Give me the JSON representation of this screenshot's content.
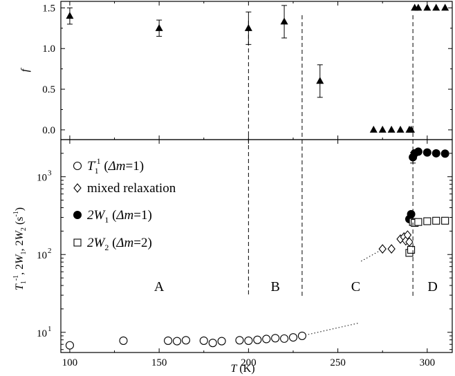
{
  "chart_data": [
    {
      "panel": "top",
      "type": "scatter",
      "ylabel": "f",
      "xlabel": "",
      "xlim": [
        95,
        314
      ],
      "ylim": [
        -0.12,
        1.58
      ],
      "yticks": [
        "0.0",
        "0.5",
        "1.0",
        "1.5"
      ],
      "ytick_values": [
        0,
        0.5,
        1.0,
        1.5
      ],
      "series": [
        {
          "marker": "filled-triangle",
          "points": [
            {
              "x": 100,
              "y": 1.4,
              "err": 0.1
            },
            {
              "x": 150,
              "y": 1.25,
              "err": 0.1
            },
            {
              "x": 200,
              "y": 1.25,
              "err": 0.2
            },
            {
              "x": 220,
              "y": 1.33,
              "err": 0.2
            },
            {
              "x": 240,
              "y": 0.6,
              "err": 0.2
            },
            {
              "x": 270,
              "y": 0.0
            },
            {
              "x": 275,
              "y": 0.0
            },
            {
              "x": 280,
              "y": 0.0
            },
            {
              "x": 285,
              "y": 0.0
            },
            {
              "x": 290,
              "y": 0.0
            },
            {
              "x": 291,
              "y": 0.0
            },
            {
              "x": 293,
              "y": 1.5
            },
            {
              "x": 295,
              "y": 1.5
            },
            {
              "x": 300,
              "y": 1.5
            },
            {
              "x": 305,
              "y": 1.5
            },
            {
              "x": 310,
              "y": 1.5
            }
          ]
        }
      ]
    },
    {
      "panel": "bottom",
      "type": "scatter",
      "scale": "log",
      "xlabel": "T (K)",
      "ylabel": "T1^-1, 2W1, 2W2 (s^-1)",
      "xlim": [
        95,
        314
      ],
      "ylim": [
        5.5,
        3000
      ],
      "xticks": [
        "100",
        "150",
        "200",
        "250",
        "300"
      ],
      "xtick_values": [
        100,
        150,
        200,
        250,
        300
      ],
      "yticks": [
        "10",
        "10",
        "10"
      ],
      "ytick_exponents": [
        "1",
        "2",
        "3"
      ],
      "ytick_values": [
        10,
        100,
        1000
      ],
      "regions": [
        "A",
        "B",
        "C",
        "D"
      ],
      "legend": [
        {
          "marker": "open-circle",
          "prefix": "T",
          "sub": "1",
          "sup": "-1",
          "suffix": " (",
          "italic": "Δm",
          "tail": "=1)"
        },
        {
          "marker": "open-diamond",
          "text": "mixed relaxation"
        },
        {
          "marker": "filled-circle",
          "prefix": "2W",
          "sub": "1",
          "suffix": " (",
          "italic": "Δm",
          "tail": "=1)"
        },
        {
          "marker": "open-square",
          "prefix": "2W",
          "sub": "2",
          "suffix": " (",
          "italic": "Δm",
          "tail": "=2)"
        }
      ],
      "series": [
        {
          "marker": "open-circle",
          "points": [
            [
              100,
              6.8
            ],
            [
              130,
              7.8
            ],
            [
              155,
              7.8
            ],
            [
              160,
              7.7
            ],
            [
              165,
              7.9
            ],
            [
              175,
              7.8
            ],
            [
              180,
              7.3
            ],
            [
              185,
              7.7
            ],
            [
              195,
              7.9
            ],
            [
              200,
              7.8
            ],
            [
              205,
              8.0
            ],
            [
              210,
              8.2
            ],
            [
              215,
              8.4
            ],
            [
              220,
              8.3
            ],
            [
              225,
              8.6
            ],
            [
              230,
              9.0
            ]
          ]
        },
        {
          "marker": "open-diamond",
          "points": [
            [
              275,
              118
            ],
            [
              280,
              118
            ],
            [
              285,
              158
            ],
            [
              287,
              168
            ],
            [
              288,
              150
            ],
            [
              289,
              178
            ],
            [
              290,
              145
            ]
          ]
        },
        {
          "marker": "filled-circle",
          "points": [
            [
              290,
              285
            ],
            [
              291,
              330
            ],
            [
              292,
              1780
            ],
            [
              293,
              2000
            ],
            [
              295,
              2100
            ],
            [
              300,
              2050
            ],
            [
              305,
              2000
            ],
            [
              310,
              1980
            ]
          ],
          "errorbars": [
            {
              "x": 292,
              "low": 1500,
              "high": 2050
            }
          ]
        },
        {
          "marker": "open-square",
          "points": [
            [
              290,
              105
            ],
            [
              291,
              115
            ],
            [
              292,
              262
            ],
            [
              293,
              255
            ],
            [
              295,
              262
            ],
            [
              300,
              268
            ],
            [
              305,
              272
            ],
            [
              310,
              272
            ]
          ]
        }
      ],
      "trend_lines": [
        {
          "style": "dotted",
          "points": [
            [
              230,
              9.0
            ],
            [
              262,
              13.2
            ]
          ]
        },
        {
          "style": "dotted",
          "points": [
            [
              263,
              82
            ],
            [
              275,
              117
            ]
          ]
        }
      ]
    }
  ],
  "vertical_dashed_lines": [
    200,
    230,
    292
  ]
}
